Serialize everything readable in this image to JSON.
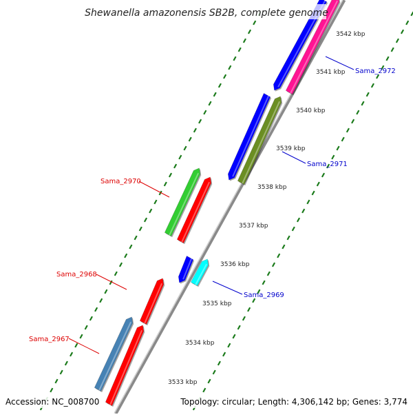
{
  "title": "Shewanella amazonensis SB2B, complete genome",
  "footer": {
    "accession": "Accession: NC_008700",
    "topology": "Topology: circular; Length: 4,306,142 bp; Genes: 3,774"
  },
  "colors": {
    "backbone": "#8a8a8a",
    "tick": "#1a7a1a",
    "forward_label": "#0000cc",
    "reverse_label": "#dd0000"
  },
  "kbp_labels": [
    "3542 kbp",
    "3541 kbp",
    "3540 kbp",
    "3539 kbp",
    "3538 kbp",
    "3537 kbp",
    "3536 kbp",
    "3535 kbp",
    "3534 kbp",
    "3533 kbp"
  ],
  "gene_labels": [
    {
      "text": "Sama_2972",
      "strand": "forward"
    },
    {
      "text": "Sama_2971",
      "strand": "forward"
    },
    {
      "text": "Sama_2970",
      "strand": "reverse"
    },
    {
      "text": "Sama_2969",
      "strand": "forward"
    },
    {
      "text": "Sama_2968",
      "strand": "reverse"
    },
    {
      "text": "Sama_2967",
      "strand": "reverse"
    }
  ],
  "features": [
    {
      "name": "Sama_2972",
      "strand": "forward",
      "track": "outer",
      "color": "#ff1493"
    },
    {
      "name": "Sama_2971",
      "strand": "forward",
      "track": "outer",
      "color": "#6b8e23"
    },
    {
      "name": "Sama_2969",
      "strand": "forward",
      "track": "outer",
      "color": "#00ffff"
    },
    {
      "name": "blue-forward-1",
      "strand": "forward",
      "track": "inner",
      "color": "#0000ff"
    },
    {
      "name": "blue-forward-2",
      "strand": "forward",
      "track": "inner",
      "color": "#0000ff"
    },
    {
      "name": "blue-forward-3",
      "strand": "forward",
      "track": "inner",
      "color": "#0000ff"
    },
    {
      "name": "Sama_2970",
      "strand": "reverse",
      "track": "outer",
      "color": "#32cd32"
    },
    {
      "name": "Sama_2967",
      "strand": "reverse",
      "track": "outer",
      "color": "#4682b4"
    },
    {
      "name": "red-reverse-1",
      "strand": "reverse",
      "track": "inner",
      "color": "#ff0000"
    },
    {
      "name": "Sama_2968",
      "strand": "reverse",
      "track": "inner",
      "color": "#ff0000"
    },
    {
      "name": "red-reverse-3",
      "strand": "reverse",
      "track": "inner",
      "color": "#ff0000"
    }
  ]
}
